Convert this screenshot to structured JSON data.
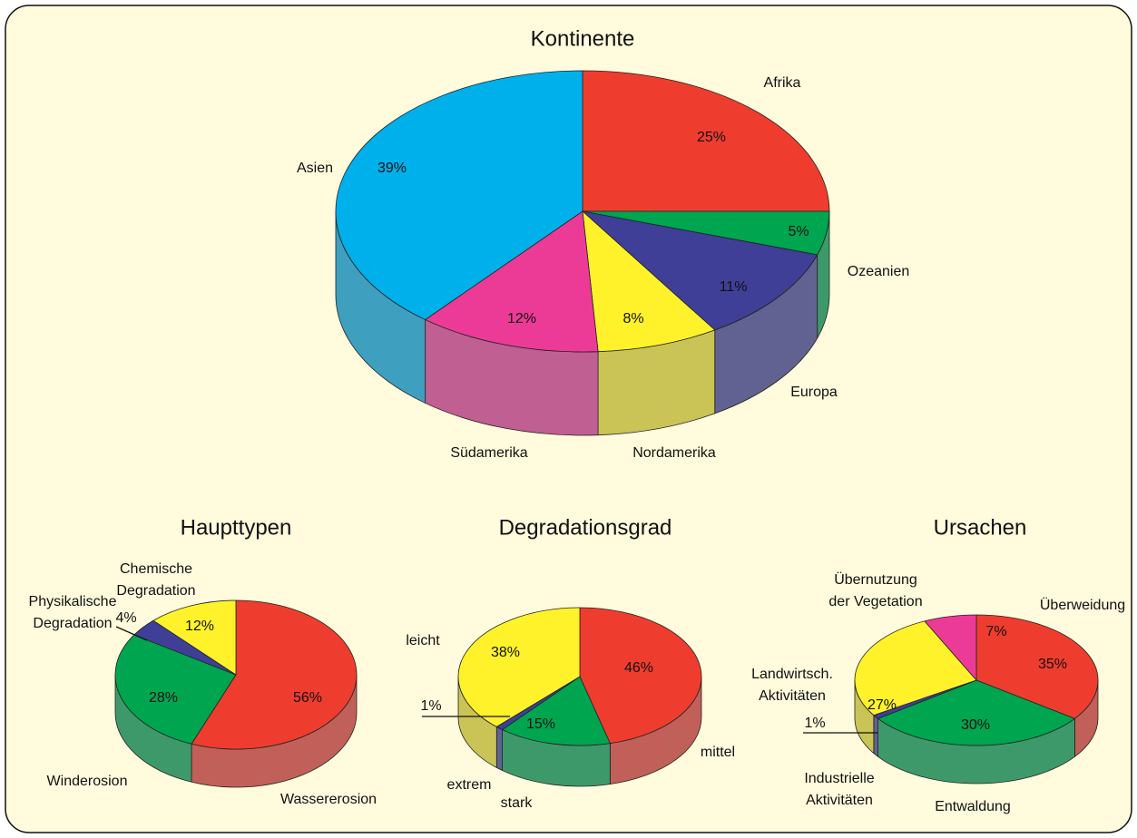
{
  "chart_data": [
    {
      "type": "pie",
      "title": "Kontinente",
      "categories": [
        "Afrika",
        "Ozeanien",
        "Europa",
        "Nordamerika",
        "Südamerika",
        "Asien"
      ],
      "values": [
        25,
        5,
        11,
        8,
        12,
        39
      ],
      "value_labels": [
        "25%",
        "5%",
        "11%",
        "8%",
        "12%",
        "39%"
      ],
      "colors": [
        "#ee3d2f",
        "#00a550",
        "#3f3f98",
        "#fff22b",
        "#ec3b96",
        "#00b0ea"
      ]
    },
    {
      "type": "pie",
      "title": "Haupttypen",
      "categories": [
        "Wassererosion",
        "Winderosion",
        "Physikalische Degradation",
        "Chemische Degradation"
      ],
      "values": [
        56,
        28,
        4,
        12
      ],
      "value_labels": [
        "56%",
        "28%",
        "4%",
        "12%"
      ],
      "colors": [
        "#ee3d2f",
        "#00a550",
        "#3f3f98",
        "#fff22b"
      ]
    },
    {
      "type": "pie",
      "title": "Degradationsgrad",
      "categories": [
        "mittel",
        "stark",
        "extrem",
        "leicht"
      ],
      "values": [
        46,
        15,
        1,
        38
      ],
      "value_labels": [
        "46%",
        "15%",
        "1%",
        "38%"
      ],
      "colors": [
        "#ee3d2f",
        "#00a550",
        "#3f3f98",
        "#fff22b"
      ]
    },
    {
      "type": "pie",
      "title": "Ursachen",
      "categories": [
        "Überweidung",
        "Entwaldung",
        "Industrielle Aktivitäten",
        "Landwirtsch. Aktivitäten",
        "Übernutzung der Vegetation"
      ],
      "values": [
        35,
        30,
        1,
        27,
        7
      ],
      "value_labels": [
        "35%",
        "30%",
        "1%",
        "27%",
        "7%"
      ],
      "colors": [
        "#ee3d2f",
        "#00a550",
        "#3f3f98",
        "#fff22b",
        "#ec3b96"
      ]
    }
  ]
}
